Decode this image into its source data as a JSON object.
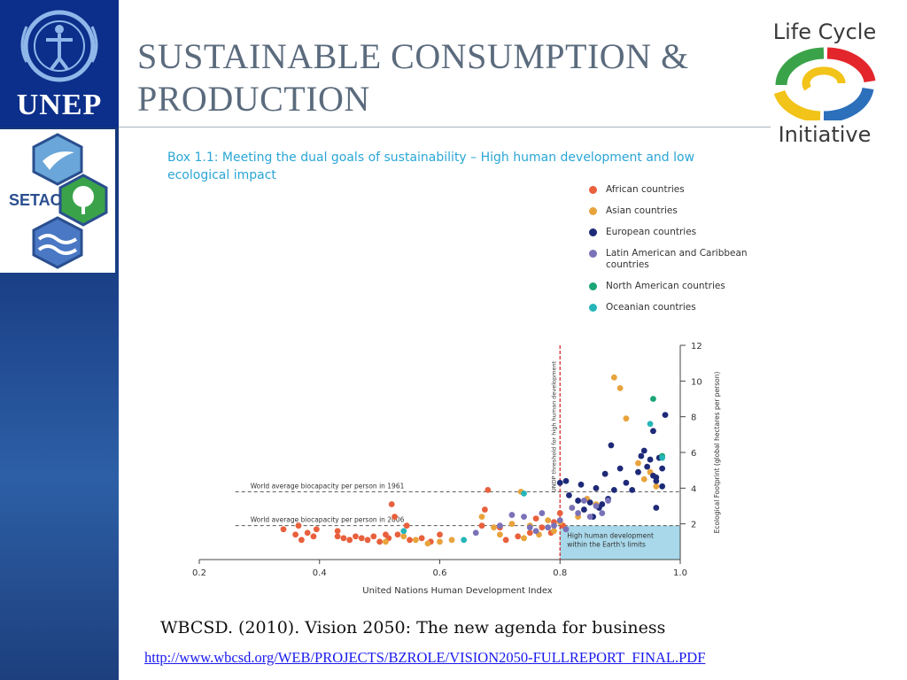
{
  "slide": {
    "title_line1": "SUSTAINABLE CONSUMPTION &",
    "title_line2": "PRODUCTION",
    "citation": "WBCSD. (2010). Vision 2050: The new agenda for business",
    "link": "http://www.wbcsd.org/WEB/PROJECTS/BZROLE/VISION2050-FULLREPORT_FINAL.PDF"
  },
  "logos": {
    "unep": "UNEP",
    "setac": "SETAC",
    "lci_top": "Life Cycle",
    "lci_bottom": "Initiative"
  },
  "colors": {
    "african": "#e8603c",
    "asian": "#e8a33c",
    "european": "#1e2a78",
    "latin": "#7a72b8",
    "north_american": "#1aa574",
    "oceanian": "#26b5b8",
    "threshold": "#d62020",
    "region": "#a8d8ea",
    "title_blue": "#2aa6d6"
  },
  "chart_data": {
    "type": "scatter",
    "title": "Box 1.1: Meeting the dual goals of sustainability – High human development and low ecological impact",
    "xlabel": "United Nations Human Development Index",
    "ylabel": "Ecological Footprint (global hectares per person)",
    "xlim": [
      0.2,
      1.0
    ],
    "ylim": [
      0,
      12
    ],
    "xticks": [
      "0.2",
      "0.4",
      "0.6",
      "0.8",
      "1.0"
    ],
    "yticks": [
      "2",
      "4",
      "6",
      "8",
      "10",
      "12"
    ],
    "xtick_values": [
      0.2,
      0.4,
      0.6,
      0.8,
      1.0
    ],
    "ytick_values": [
      2,
      4,
      6,
      8,
      10,
      12
    ],
    "legend_position": "top-right",
    "threshold_label": "UNDP threshold for high human development",
    "threshold_x": 0.8,
    "ref_lines": [
      {
        "label": "World average biocapacity per person in 1961",
        "y": 3.8
      },
      {
        "label": "World average biocapacity per person in 2006",
        "y": 1.9
      }
    ],
    "region": {
      "label_line1": "High human development",
      "label_line2": "within the Earth's limits",
      "x": [
        0.8,
        1.0
      ],
      "y": [
        0,
        1.9
      ]
    },
    "series": [
      {
        "name": "African countries",
        "key": "african",
        "points": [
          [
            0.34,
            1.7
          ],
          [
            0.36,
            1.4
          ],
          [
            0.365,
            1.9
          ],
          [
            0.37,
            1.1
          ],
          [
            0.38,
            1.5
          ],
          [
            0.39,
            1.3
          ],
          [
            0.395,
            1.7
          ],
          [
            0.43,
            1.6
          ],
          [
            0.43,
            1.3
          ],
          [
            0.44,
            1.2
          ],
          [
            0.45,
            1.1
          ],
          [
            0.46,
            1.3
          ],
          [
            0.47,
            1.2
          ],
          [
            0.48,
            1.1
          ],
          [
            0.49,
            1.3
          ],
          [
            0.5,
            1.0
          ],
          [
            0.51,
            1.4
          ],
          [
            0.515,
            1.2
          ],
          [
            0.52,
            3.1
          ],
          [
            0.525,
            2.4
          ],
          [
            0.53,
            1.4
          ],
          [
            0.545,
            1.9
          ],
          [
            0.55,
            1.1
          ],
          [
            0.57,
            1.2
          ],
          [
            0.585,
            1.0
          ],
          [
            0.6,
            1.4
          ],
          [
            0.67,
            1.9
          ],
          [
            0.675,
            2.8
          ],
          [
            0.68,
            3.9
          ],
          [
            0.7,
            1.8
          ],
          [
            0.71,
            1.1
          ],
          [
            0.73,
            1.3
          ],
          [
            0.75,
            1.5
          ],
          [
            0.76,
            2.3
          ],
          [
            0.77,
            1.8
          ],
          [
            0.785,
            1.5
          ],
          [
            0.79,
            2.1
          ],
          [
            0.8,
            2.6
          ],
          [
            0.805,
            1.9
          ]
        ]
      },
      {
        "name": "Asian countries",
        "key": "asian",
        "points": [
          [
            0.51,
            1.0
          ],
          [
            0.54,
            1.3
          ],
          [
            0.56,
            1.1
          ],
          [
            0.58,
            0.9
          ],
          [
            0.6,
            1.0
          ],
          [
            0.62,
            1.1
          ],
          [
            0.67,
            2.4
          ],
          [
            0.69,
            1.8
          ],
          [
            0.7,
            1.4
          ],
          [
            0.72,
            2.0
          ],
          [
            0.735,
            3.8
          ],
          [
            0.74,
            1.2
          ],
          [
            0.75,
            1.9
          ],
          [
            0.765,
            1.4
          ],
          [
            0.78,
            2.2
          ],
          [
            0.79,
            1.6
          ],
          [
            0.8,
            2.1
          ],
          [
            0.82,
            2.9
          ],
          [
            0.83,
            2.4
          ],
          [
            0.845,
            3.4
          ],
          [
            0.86,
            3.1
          ],
          [
            0.89,
            10.2
          ],
          [
            0.9,
            9.6
          ],
          [
            0.91,
            7.9
          ],
          [
            0.93,
            5.4
          ],
          [
            0.94,
            4.5
          ],
          [
            0.95,
            4.9
          ],
          [
            0.96,
            4.1
          ]
        ]
      },
      {
        "name": "European countries",
        "key": "european",
        "points": [
          [
            0.8,
            4.3
          ],
          [
            0.81,
            4.4
          ],
          [
            0.815,
            3.6
          ],
          [
            0.83,
            3.3
          ],
          [
            0.835,
            4.2
          ],
          [
            0.84,
            2.8
          ],
          [
            0.85,
            3.2
          ],
          [
            0.855,
            2.4
          ],
          [
            0.86,
            4.0
          ],
          [
            0.865,
            2.9
          ],
          [
            0.87,
            3.1
          ],
          [
            0.875,
            4.8
          ],
          [
            0.88,
            3.4
          ],
          [
            0.885,
            6.4
          ],
          [
            0.89,
            3.9
          ],
          [
            0.9,
            5.1
          ],
          [
            0.91,
            4.3
          ],
          [
            0.92,
            3.9
          ],
          [
            0.93,
            4.9
          ],
          [
            0.935,
            5.8
          ],
          [
            0.94,
            6.1
          ],
          [
            0.945,
            5.2
          ],
          [
            0.95,
            5.6
          ],
          [
            0.955,
            4.7
          ],
          [
            0.96,
            4.4
          ],
          [
            0.965,
            5.7
          ],
          [
            0.97,
            4.1
          ],
          [
            0.975,
            8.1
          ],
          [
            0.955,
            7.2
          ],
          [
            0.96,
            2.9
          ],
          [
            0.96,
            4.6
          ],
          [
            0.97,
            5.1
          ]
        ]
      },
      {
        "name": "Latin American and Caribbean countries",
        "key": "latin",
        "points": [
          [
            0.66,
            1.5
          ],
          [
            0.7,
            1.9
          ],
          [
            0.72,
            2.5
          ],
          [
            0.74,
            2.4
          ],
          [
            0.75,
            1.8
          ],
          [
            0.76,
            1.6
          ],
          [
            0.77,
            2.6
          ],
          [
            0.78,
            1.8
          ],
          [
            0.79,
            1.9
          ],
          [
            0.8,
            2.2
          ],
          [
            0.81,
            1.7
          ],
          [
            0.82,
            2.9
          ],
          [
            0.83,
            2.6
          ],
          [
            0.84,
            3.3
          ],
          [
            0.85,
            2.4
          ],
          [
            0.86,
            3.0
          ],
          [
            0.87,
            2.6
          ],
          [
            0.88,
            3.3
          ]
        ]
      },
      {
        "name": "North American countries",
        "key": "north_american",
        "points": [
          [
            0.955,
            9.0
          ],
          [
            0.97,
            5.8
          ]
        ]
      },
      {
        "name": "Oceanian countries",
        "key": "oceanian",
        "points": [
          [
            0.54,
            1.6
          ],
          [
            0.64,
            1.1
          ],
          [
            0.74,
            3.7
          ],
          [
            0.95,
            7.6
          ],
          [
            0.97,
            5.7
          ]
        ]
      }
    ]
  }
}
